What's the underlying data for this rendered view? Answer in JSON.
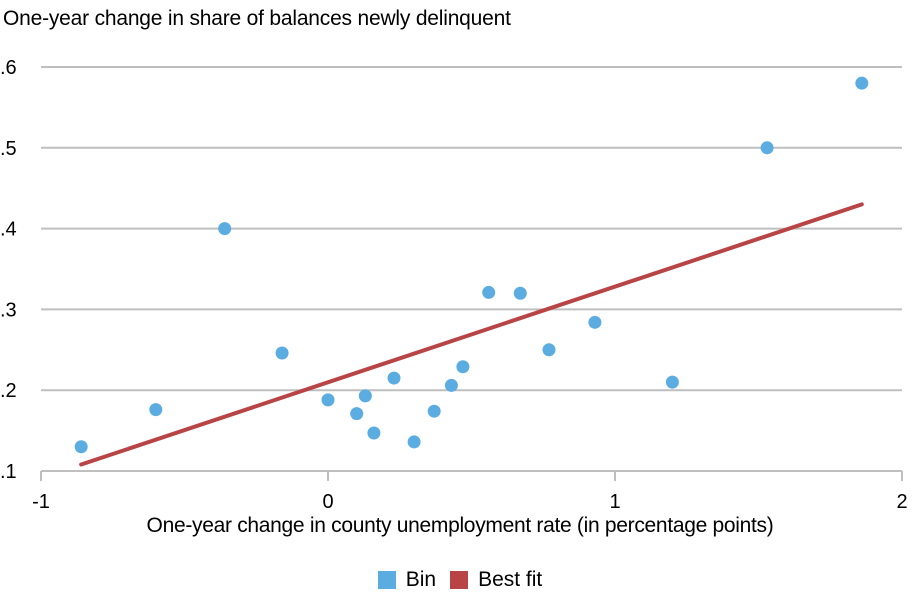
{
  "chart_data": {
    "type": "scatter",
    "title": "One-year change in share of balances newly delinquent",
    "xlabel": "One-year change in county unemployment rate (in percentage points)",
    "ylabel": "One-year change in share of balances newly delinquent",
    "xlim": [
      -1,
      2
    ],
    "ylim": [
      0.1,
      0.6
    ],
    "x_ticks": [
      "-1",
      "0",
      "1",
      "2"
    ],
    "y_ticks": [
      ".1",
      ".2",
      ".3",
      ".4",
      ".5",
      ".6"
    ],
    "grid": "horizontal",
    "legend_position": "bottom",
    "series": [
      {
        "name": "Bin",
        "type": "scatter",
        "color": "#5BACE0",
        "points": [
          [
            -0.86,
            0.13
          ],
          [
            -0.6,
            0.176
          ],
          [
            -0.36,
            0.4
          ],
          [
            -0.16,
            0.246
          ],
          [
            0.0,
            0.188
          ],
          [
            0.1,
            0.171
          ],
          [
            0.13,
            0.193
          ],
          [
            0.16,
            0.147
          ],
          [
            0.23,
            0.215
          ],
          [
            0.3,
            0.136
          ],
          [
            0.37,
            0.174
          ],
          [
            0.43,
            0.206
          ],
          [
            0.47,
            0.229
          ],
          [
            0.56,
            0.321
          ],
          [
            0.67,
            0.32
          ],
          [
            0.77,
            0.25
          ],
          [
            0.93,
            0.284
          ],
          [
            1.2,
            0.21
          ],
          [
            1.53,
            0.5
          ],
          [
            1.86,
            0.58
          ]
        ]
      },
      {
        "name": "Best fit",
        "type": "line",
        "color": "#B84446",
        "points": [
          [
            -0.86,
            0.108
          ],
          [
            1.86,
            0.43
          ]
        ]
      }
    ]
  },
  "legend": {
    "items": [
      {
        "label": "Bin",
        "color": "#5BACE0"
      },
      {
        "label": "Best fit",
        "color": "#B84446"
      }
    ]
  },
  "colors": {
    "grid": "#BFBFBF",
    "text": "#000000"
  }
}
